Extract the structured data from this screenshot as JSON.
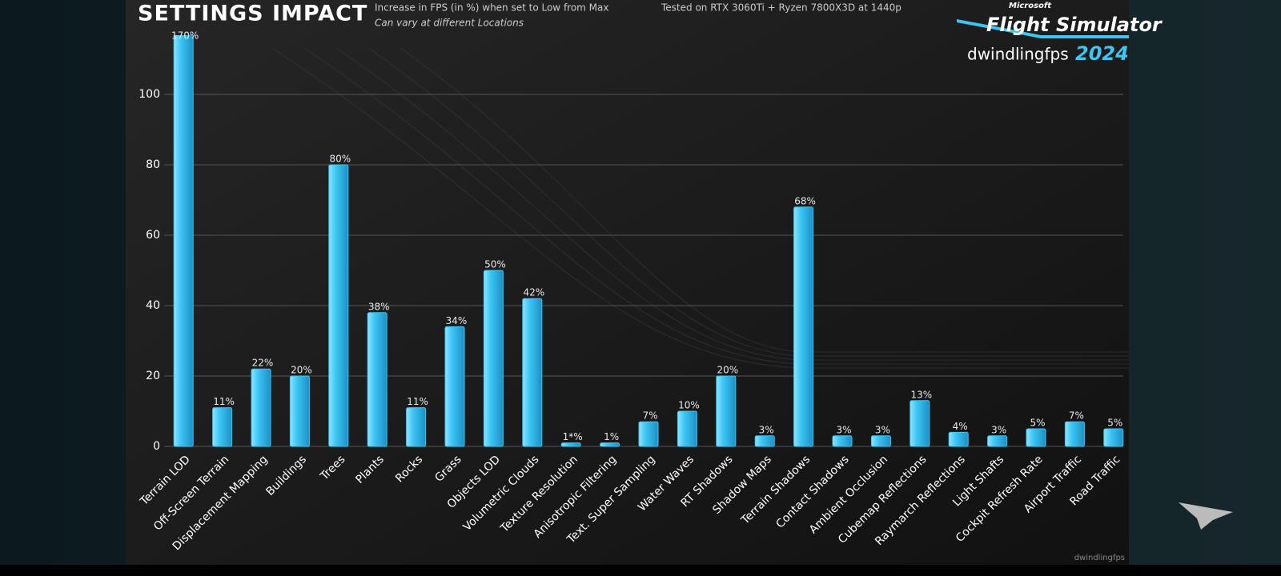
{
  "chart_data": {
    "type": "bar",
    "title": "SETTINGS IMPACT",
    "subtitle": "Increase in FPS (in %) when set to Low from Max",
    "note": "Can vary at different Locations",
    "test_setup": "Tested on RTX 3060Ti + Ryzen 7800X3D at 1440p",
    "logo": {
      "brand": "Microsoft",
      "name": "Flight Simulator",
      "year": "2024",
      "channel": "dwindlingfps"
    },
    "watermark": "dwindlingfps",
    "categories": [
      "Terrain LOD",
      "Off-Screen Terrain",
      "Displacement Mapping",
      "Buildings",
      "Trees",
      "Plants",
      "Rocks",
      "Grass",
      "Objects LOD",
      "Volumetric Clouds",
      "Texture Resolution",
      "Anisotropic Filtering",
      "Text. Super Sampling",
      "Water Waves",
      "RT Shadows",
      "Shadow Maps",
      "Terrain Shadows",
      "Contact Shadows",
      "Ambient Occlusion",
      "Cubemap Reflections",
      "Raymarch Reflections",
      "Light Shafts",
      "Cockpit Refresh Rate",
      "Airport Traffic",
      "Road Traffic"
    ],
    "values": [
      170,
      11,
      22,
      20,
      80,
      38,
      11,
      34,
      50,
      42,
      1,
      1,
      7,
      10,
      20,
      3,
      68,
      3,
      3,
      13,
      4,
      3,
      5,
      7,
      5
    ],
    "value_labels": [
      "170%",
      "11%",
      "22%",
      "20%",
      "80%",
      "38%",
      "11%",
      "34%",
      "50%",
      "42%",
      "1*%",
      "1%",
      "7%",
      "10%",
      "20%",
      "3%",
      "68%",
      "3%",
      "3%",
      "13%",
      "4%",
      "3%",
      "5%",
      "7%",
      "5%"
    ],
    "color": "#3cc6f4",
    "ylim": [
      0,
      115
    ],
    "yticks": [
      0,
      20,
      40,
      60,
      80,
      100
    ],
    "grid": true
  }
}
